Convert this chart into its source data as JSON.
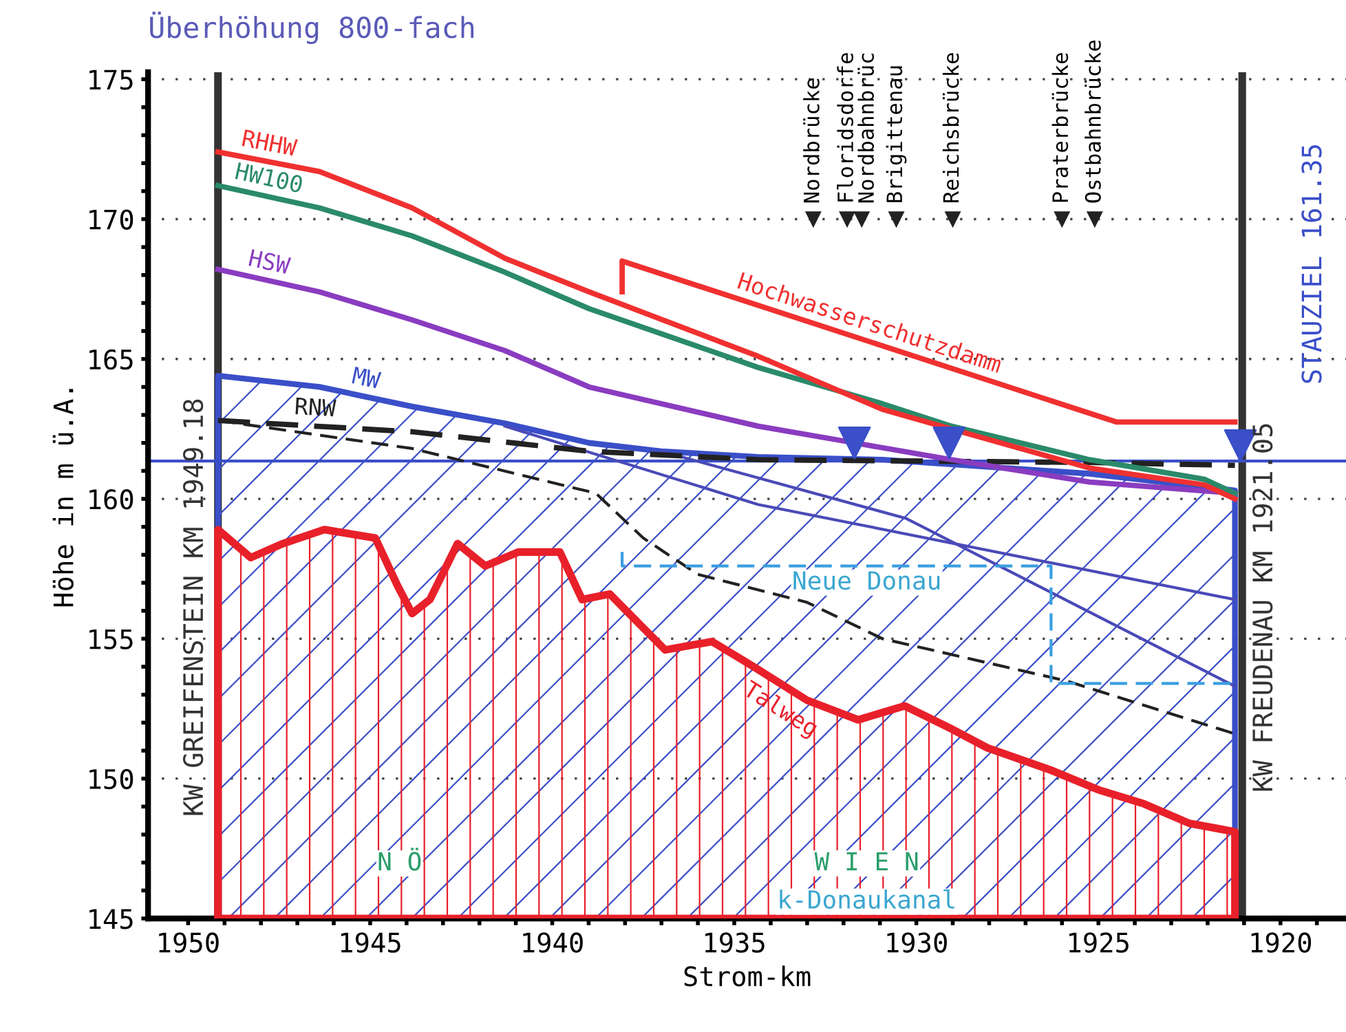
{
  "chart_data": {
    "type": "line",
    "title": "Überhöhung 800-fach",
    "xlabel": "Strom-km",
    "ylabel": "Höhe in m ü.A.",
    "xlim": [
      1951.1,
      1918.2
    ],
    "ylim": [
      145,
      175.25
    ],
    "xticks": [
      1950,
      {
        "value": 1949,
        "label": null
      },
      {
        "value": 1948,
        "label": null
      },
      {
        "value": 1947,
        "label": null
      },
      {
        "value": 1946,
        "label": null
      },
      1945,
      {
        "value": 1944,
        "label": null
      },
      {
        "value": 1943,
        "label": null
      },
      {
        "value": 1942,
        "label": null
      },
      {
        "value": 1941,
        "label": null
      },
      1940,
      {
        "value": 1939,
        "label": null
      },
      {
        "value": 1938,
        "label": null
      },
      {
        "value": 1937,
        "label": null
      },
      {
        "value": 1936,
        "label": null
      },
      1935,
      {
        "value": 1934,
        "label": null
      },
      {
        "value": 1933,
        "label": null
      },
      {
        "value": 1932,
        "label": null
      },
      {
        "value": 1931,
        "label": null
      },
      1930,
      {
        "value": 1929,
        "label": null
      },
      {
        "value": 1928,
        "label": null
      },
      {
        "value": 1927,
        "label": null
      },
      {
        "value": 1926,
        "label": null
      },
      1925,
      {
        "value": 1924,
        "label": null
      },
      {
        "value": 1923,
        "label": null
      },
      {
        "value": 1922,
        "label": null
      },
      {
        "value": 1921,
        "label": null
      },
      1920,
      {
        "value": 1919,
        "label": null
      }
    ],
    "yticks": [
      145,
      {
        "value": 146,
        "label": null
      },
      {
        "value": 147,
        "label": null
      },
      {
        "value": 148,
        "label": null
      },
      {
        "value": 149,
        "label": null
      },
      150,
      {
        "value": 151,
        "label": null
      },
      {
        "value": 152,
        "label": null
      },
      {
        "value": 153,
        "label": null
      },
      {
        "value": 154,
        "label": null
      },
      155,
      {
        "value": 156,
        "label": null
      },
      {
        "value": 157,
        "label": null
      },
      {
        "value": 158,
        "label": null
      },
      {
        "value": 159,
        "label": null
      },
      160,
      {
        "value": 161,
        "label": null
      },
      {
        "value": 162,
        "label": null
      },
      {
        "value": 163,
        "label": null
      },
      {
        "value": 164,
        "label": null
      },
      165,
      {
        "value": 166,
        "label": null
      },
      {
        "value": 167,
        "label": null
      },
      {
        "value": 168,
        "label": null
      },
      {
        "value": 169,
        "label": null
      },
      170,
      {
        "value": 171,
        "label": null
      },
      {
        "value": 172,
        "label": null
      },
      {
        "value": 173,
        "label": null
      },
      {
        "value": 174,
        "label": null
      },
      175
    ],
    "grid": "y",
    "series": [
      {
        "name": "Talweg",
        "type": "area",
        "color": "#e8202a",
        "x": [
          1949.18,
          1948.28,
          1947.4,
          1946.26,
          1944.86,
          1944.25,
          1943.85,
          1943.36,
          1942.6,
          1941.84,
          1940.93,
          1939.79,
          1939.18,
          1938.42,
          1937.51,
          1936.9,
          1935.61,
          1934.47,
          1933.0,
          1931.6,
          1930.32,
          1929.07,
          1928.05,
          1926.3,
          1925.0,
          1923.75,
          1922.5,
          1921.25
        ],
        "values": [
          158.9,
          157.9,
          158.4,
          158.9,
          158.6,
          156.9,
          155.9,
          156.4,
          158.4,
          157.6,
          158.1,
          158.1,
          156.4,
          156.6,
          155.4,
          154.6,
          154.9,
          154.0,
          152.8,
          152.1,
          152.6,
          151.8,
          151.1,
          150.3,
          149.6,
          149.1,
          148.4,
          148.1
        ]
      },
      {
        "name": "MW",
        "type": "area",
        "color": "#3a4fc8",
        "x": [
          1949.18,
          1946.39,
          1943.85,
          1941.3,
          1938.99,
          1937.01,
          1934.35,
          1930.93,
          1925.24,
          1921.25
        ],
        "values": [
          164.4,
          164.0,
          163.3,
          162.7,
          162.0,
          161.7,
          161.5,
          161.4,
          160.9,
          160.3
        ]
      },
      {
        "color": "#4a4ab8",
        "line_style": "solid",
        "x": [
          1941.3,
          1934.35,
          1921.25
        ],
        "values": [
          162.6,
          159.8,
          156.4
        ]
      },
      {
        "color": "#4a4ab8",
        "line_style": "solid",
        "x": [
          1937.01,
          1930.28,
          1921.25
        ],
        "values": [
          161.7,
          159.3,
          153.3
        ]
      },
      {
        "color": "#222222",
        "line_style": "dashed",
        "x": [
          1949.18,
          1943.85,
          1938.8,
          1937.5,
          1936.0,
          1933.0,
          1930.93,
          1925.9,
          1921.25
        ],
        "values": [
          162.8,
          161.8,
          160.2,
          158.6,
          157.3,
          156.3,
          155.0,
          153.5,
          151.6
        ]
      },
      {
        "name": "RNW",
        "color": "#222222",
        "line_style": "dashed",
        "x": [
          1949.18,
          1943.85,
          1938.99,
          1934.35,
          1925.24,
          1921.25
        ],
        "values": [
          162.8,
          162.4,
          161.7,
          161.4,
          161.3,
          161.2
        ]
      },
      {
        "name": "HSW",
        "color": "#8a3cc0",
        "line_style": "solid",
        "x": [
          1949.18,
          1946.39,
          1943.85,
          1941.3,
          1938.99,
          1934.35,
          1931.69,
          1929.04,
          1925.24,
          1921.25
        ],
        "values": [
          168.2,
          167.4,
          166.4,
          165.3,
          164.0,
          162.6,
          162.0,
          161.4,
          160.6,
          160.2
        ]
      },
      {
        "name": "HW100",
        "color": "#2a8a6a",
        "line_style": "solid",
        "x": [
          1949.18,
          1946.39,
          1943.85,
          1941.3,
          1938.99,
          1934.35,
          1930.93,
          1929.04,
          1925.24,
          1922.09,
          1921.25
        ],
        "values": [
          171.2,
          170.4,
          169.4,
          168.1,
          166.8,
          164.7,
          163.4,
          162.6,
          161.4,
          160.7,
          160.2
        ]
      },
      {
        "name": "RHHW",
        "color": "#f03030",
        "line_style": "solid",
        "x": [
          1949.18,
          1946.39,
          1943.85,
          1941.3,
          1938.99,
          1934.35,
          1930.93,
          1929.04,
          1925.24,
          1922.09,
          1921.25
        ],
        "values": [
          172.4,
          171.7,
          170.4,
          168.6,
          167.4,
          165.1,
          163.2,
          162.5,
          161.1,
          160.5,
          160.0
        ]
      },
      {
        "name": "Hochwasserschutzdamm",
        "color": "#f03030",
        "line_style": "solid",
        "x": [
          1938.08,
          1938.08,
          1924.51,
          1921.25
        ],
        "values": [
          167.4,
          168.5,
          162.75,
          162.75
        ]
      },
      {
        "color": "#3a9ee0",
        "line_style": "dashed",
        "x": [
          1938.08,
          1938.08,
          1926.3,
          1926.3,
          1921.25
        ],
        "values": [
          158.1,
          157.6,
          157.6,
          153.4,
          153.4
        ]
      },
      {
        "type": "scatter",
        "color": "#3a4fc8",
        "marker": "triangle",
        "x": [
          1931.7,
          1929.1,
          1921.1
        ],
        "values": [
          162.0,
          162.0,
          161.9
        ]
      }
    ],
    "ref_lines": [
      {
        "axis": "x",
        "value": 1949.18,
        "label": "KW GREIFENSTEIN KM 1949.18",
        "color": "#333333"
      },
      {
        "axis": "x",
        "value": 1921.05,
        "label": "KW FREUDENAU KM 1921.05",
        "color": "#333333"
      },
      {
        "axis": "y",
        "value": 161.35,
        "label": "STAUZIEL 161.35",
        "color": "#3a4fc8"
      }
    ],
    "annotations": [
      {
        "text": "Nordbrücke",
        "x": 1932.83,
        "y": 170
      },
      {
        "text": "Floridsdorfe",
        "x": 1931.9,
        "y": 170
      },
      {
        "text": "Nordbahnbrüc",
        "x": 1931.5,
        "y": 170
      },
      {
        "text": "Brigittenau",
        "x": 1930.55,
        "y": 170
      },
      {
        "text": "Reichsbrücke",
        "x": 1929.0,
        "y": 170
      },
      {
        "text": "Praterbrücke",
        "x": 1926.0,
        "y": 170
      },
      {
        "text": "Ostbahnbrücke",
        "x": 1925.1,
        "y": 170
      },
      "Neue Donau",
      "N Ö",
      "W I E N",
      "k-Donaukanal"
    ]
  }
}
